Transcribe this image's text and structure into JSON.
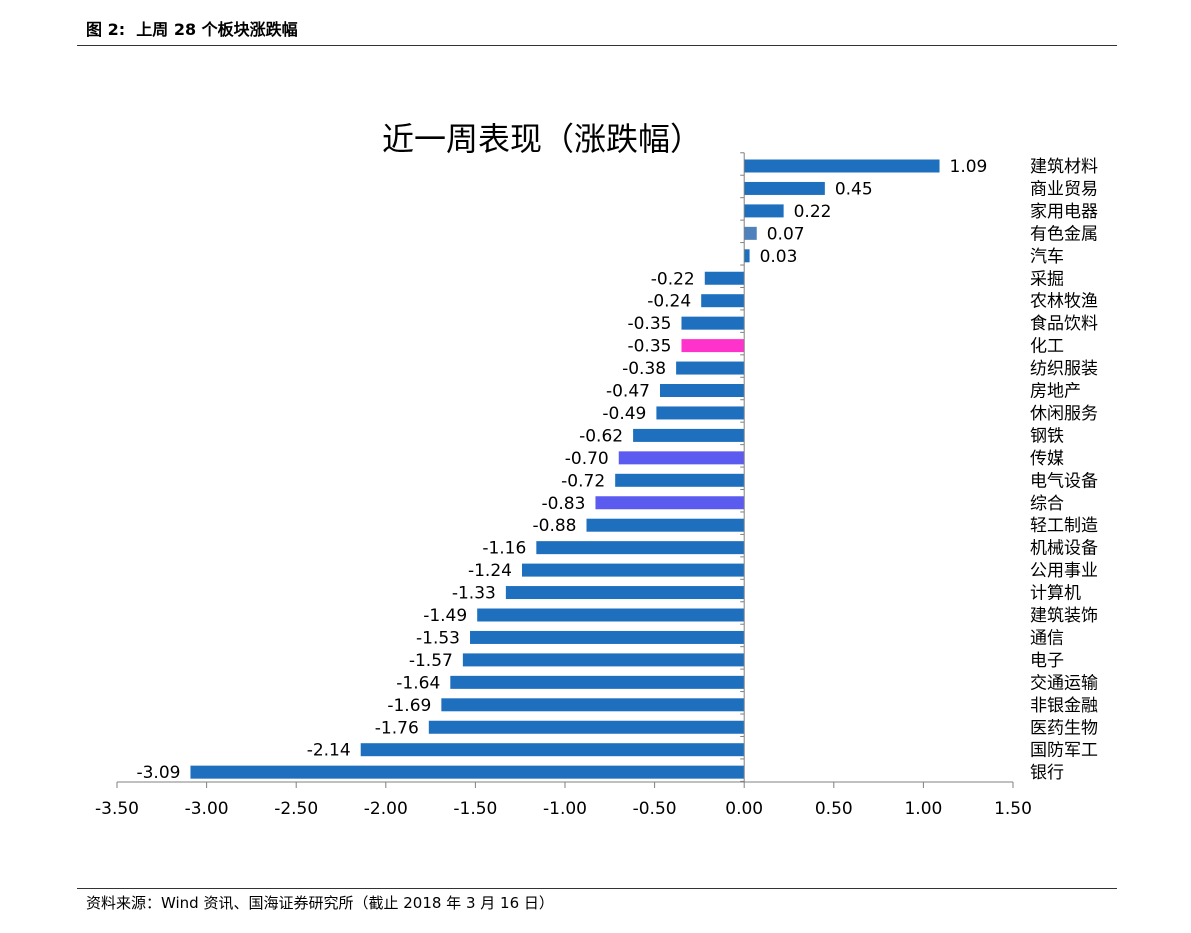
{
  "figure": {
    "label": "图 2:",
    "caption": "上周 28 个板块涨跌幅",
    "source": "资料来源：Wind 资讯、国海证券研究所（截止 2018 年 3 月 16 日）"
  },
  "chart_data": {
    "type": "bar",
    "orientation": "horizontal",
    "title": "近一周表现（涨跌幅）",
    "xlabel": "",
    "ylabel": "",
    "xlim": [
      -3.5,
      1.5
    ],
    "tick_step": 0.5,
    "tick_labels": [
      "-3.50",
      "-3.00",
      "-2.50",
      "-2.00",
      "-1.50",
      "-1.00",
      "-0.50",
      "0.00",
      "0.50",
      "1.00",
      "1.50"
    ],
    "grid": false,
    "legend": "none",
    "category_label_position": "right",
    "categories": [
      "建筑材料",
      "商业贸易",
      "家用电器",
      "有色金属",
      "汽车",
      "采掘",
      "农林牧渔",
      "食品饮料",
      "化工",
      "纺织服装",
      "房地产",
      "休闲服务",
      "钢铁",
      "传媒",
      "电气设备",
      "综合",
      "轻工制造",
      "机械设备",
      "公用事业",
      "计算机",
      "建筑装饰",
      "通信",
      "电子",
      "交通运输",
      "非银金融",
      "医药生物",
      "国防军工",
      "银行"
    ],
    "values": [
      1.09,
      0.45,
      0.22,
      0.07,
      0.03,
      -0.22,
      -0.24,
      -0.35,
      -0.35,
      -0.38,
      -0.47,
      -0.49,
      -0.62,
      -0.7,
      -0.72,
      -0.83,
      -0.88,
      -1.16,
      -1.24,
      -1.33,
      -1.49,
      -1.53,
      -1.57,
      -1.64,
      -1.69,
      -1.76,
      -2.14,
      -3.09
    ],
    "value_labels": [
      "1.09",
      "0.45",
      "0.22",
      "0.07",
      "0.03",
      "-0.22",
      "-0.24",
      "-0.35",
      "-0.35",
      "-0.38",
      "-0.47",
      "-0.49",
      "-0.62",
      "-0.70",
      "-0.72",
      "-0.83",
      "-0.88",
      "-1.16",
      "-1.24",
      "-1.33",
      "-1.49",
      "-1.53",
      "-1.57",
      "-1.64",
      "-1.69",
      "-1.76",
      "-2.14",
      "-3.09"
    ],
    "colors": {
      "default": "#1f6fbf",
      "highlight": {
        "有色金属": "#4f81bd",
        "化工": "#ff33cc",
        "传媒": "#5b5bf0",
        "综合": "#5b5bf0"
      },
      "axis": "#808080",
      "text": "#000000"
    }
  }
}
